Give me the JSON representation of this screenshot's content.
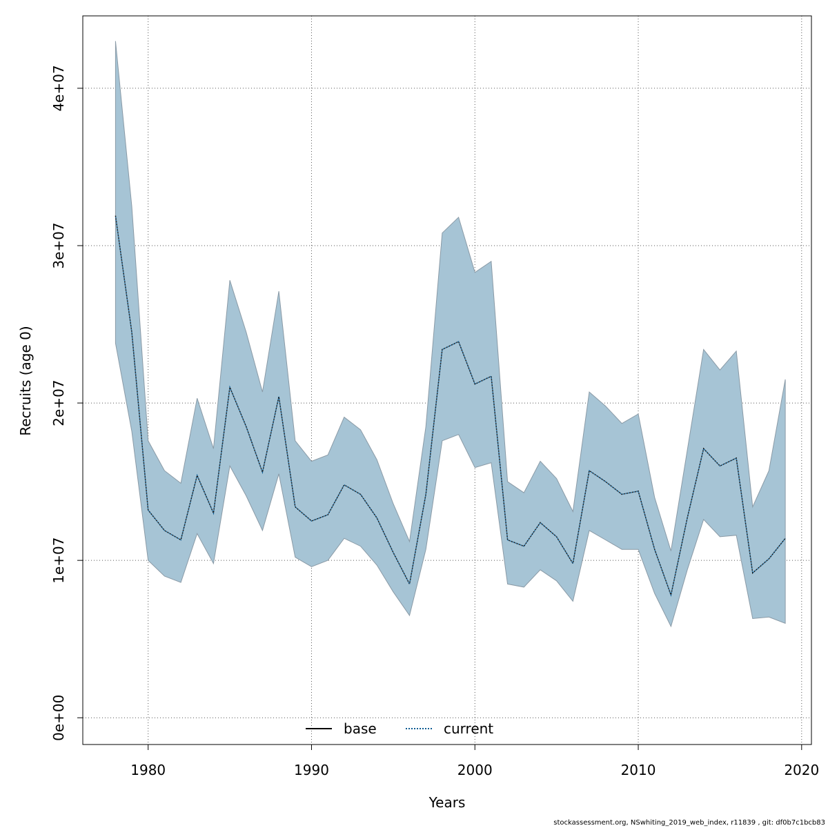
{
  "chart_data": {
    "type": "area",
    "xlabel": "Years",
    "ylabel": "Recruits (age 0)",
    "xlim": [
      1976,
      2020.6
    ],
    "ylim": [
      -1700000,
      44600000
    ],
    "x_ticks": [
      1980,
      1990,
      2000,
      2010,
      2020
    ],
    "y_ticks": [
      0,
      10000000,
      20000000,
      30000000,
      40000000
    ],
    "y_tick_labels": [
      "0e+00",
      "1e+07",
      "2e+07",
      "3e+07",
      "4e+07"
    ],
    "grid": true,
    "legend_position": "bottom-center",
    "x": [
      1978,
      1979,
      1980,
      1981,
      1982,
      1983,
      1984,
      1985,
      1986,
      1987,
      1988,
      1989,
      1990,
      1991,
      1992,
      1993,
      1994,
      1995,
      1996,
      1997,
      1998,
      1999,
      2000,
      2001,
      2002,
      2003,
      2004,
      2005,
      2006,
      2007,
      2008,
      2009,
      2010,
      2011,
      2012,
      2013,
      2014,
      2015,
      2016,
      2017,
      2018,
      2019
    ],
    "series": [
      {
        "name": "base",
        "color": "#000000",
        "line_style": "solid",
        "values": [
          31900000,
          24500000,
          13200000,
          11900000,
          11300000,
          15400000,
          13000000,
          21000000,
          18500000,
          15600000,
          20400000,
          13400000,
          12500000,
          12900000,
          14800000,
          14200000,
          12700000,
          10500000,
          8500000,
          14200000,
          23400000,
          23900000,
          21200000,
          21700000,
          11300000,
          10900000,
          12400000,
          11500000,
          9800000,
          15700000,
          15000000,
          14200000,
          14400000,
          10700000,
          7800000,
          12700000,
          17100000,
          16000000,
          16500000,
          9200000,
          10100000,
          11400000
        ]
      },
      {
        "name": "current",
        "color": "#0b5a91",
        "line_style": "dotted",
        "values": [
          31900000,
          24500000,
          13200000,
          11900000,
          11300000,
          15400000,
          13000000,
          21000000,
          18500000,
          15600000,
          20400000,
          13400000,
          12500000,
          12900000,
          14800000,
          14200000,
          12700000,
          10500000,
          8500000,
          14200000,
          23400000,
          23900000,
          21200000,
          21700000,
          11300000,
          10900000,
          12400000,
          11500000,
          9800000,
          15700000,
          15000000,
          14200000,
          14400000,
          10700000,
          7800000,
          12700000,
          17100000,
          16000000,
          16500000,
          9200000,
          10100000,
          11400000
        ]
      }
    ],
    "band": {
      "color": "#a6c4d5",
      "edge_color": "#8a9aa6",
      "upper": [
        43000000,
        32500000,
        17600000,
        15700000,
        14900000,
        20300000,
        17100000,
        27800000,
        24500000,
        20700000,
        27100000,
        17600000,
        16300000,
        16700000,
        19100000,
        18300000,
        16400000,
        13600000,
        11200000,
        18500000,
        30800000,
        31800000,
        28300000,
        29000000,
        15000000,
        14300000,
        16300000,
        15200000,
        13100000,
        20700000,
        19800000,
        18700000,
        19300000,
        14000000,
        10600000,
        17000000,
        23400000,
        22100000,
        23300000,
        13400000,
        15700000,
        21500000
      ],
      "lower": [
        23800000,
        18200000,
        10000000,
        9000000,
        8600000,
        11700000,
        9800000,
        16000000,
        14100000,
        11900000,
        15500000,
        10200000,
        9600000,
        10000000,
        11400000,
        10900000,
        9700000,
        8000000,
        6500000,
        10700000,
        17600000,
        18000000,
        15900000,
        16200000,
        8500000,
        8300000,
        9400000,
        8700000,
        7400000,
        11900000,
        11300000,
        10700000,
        10700000,
        7900000,
        5800000,
        9400000,
        12600000,
        11500000,
        11600000,
        6300000,
        6400000,
        6000000
      ]
    }
  },
  "legend": {
    "items": [
      {
        "label": "base",
        "color": "#000000",
        "style": "solid"
      },
      {
        "label": "current",
        "color": "#0b5a91",
        "style": "dotted"
      }
    ]
  },
  "footer": {
    "text": "stockassessment.org, NSwhiting_2019_web_index, r11839 , git: df0b7c1bcb83"
  }
}
